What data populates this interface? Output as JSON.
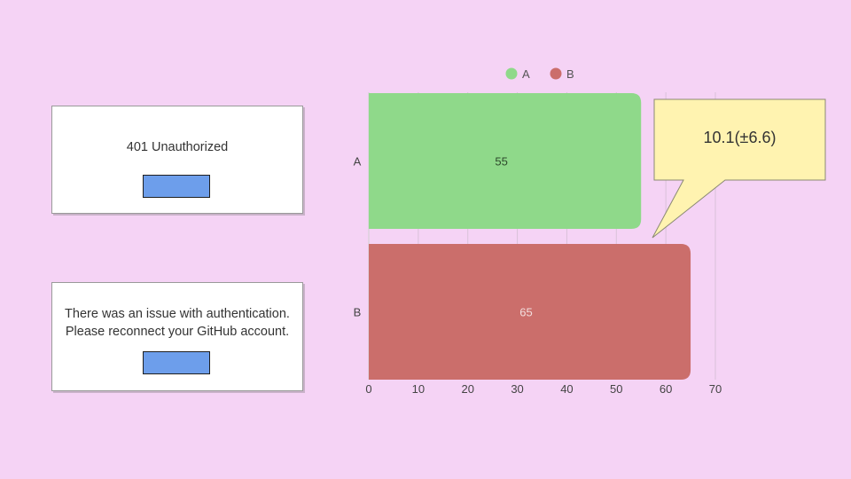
{
  "dialogs": [
    {
      "message": "401 Unauthorized",
      "button_label": ""
    },
    {
      "message": "There was an issue with authentication. Please reconnect your GitHub account.",
      "button_label": ""
    }
  ],
  "chart_data": {
    "type": "bar",
    "orientation": "horizontal",
    "categories": [
      "A",
      "B"
    ],
    "series": [
      {
        "name": "A",
        "category": "A",
        "value": 55,
        "color": "#8fd98a"
      },
      {
        "name": "B",
        "category": "B",
        "value": 65,
        "color": "#cb6e6b"
      }
    ],
    "x_ticks": [
      "0",
      "10",
      "20",
      "30",
      "40",
      "50",
      "60",
      "70"
    ],
    "xlim": [
      0,
      70
    ],
    "grid": true,
    "legend": "top",
    "annotation": {
      "text": "10.1(±6.6)",
      "fill": "#fff3b0"
    }
  }
}
